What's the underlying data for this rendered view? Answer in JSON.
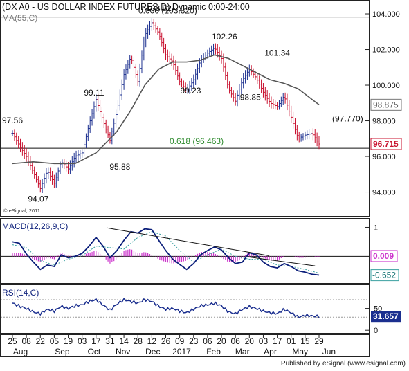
{
  "colors": {
    "price_bar": "#1b2f8f",
    "price_bar_down": "#c8102e",
    "ma_line": "#555555",
    "macd_line": "#0b1e7a",
    "signal_line": "#3aa0a0",
    "histogram": "#cc33cc",
    "rsi_line": "#1b2f8f",
    "fib_text": "#2e8b2e",
    "last_price_badge": "#c8102e",
    "rsi_badge": "#1b2f8f"
  },
  "chart_data": [
    {
      "type": "line",
      "panel": "price",
      "title": "(DX A0 - US DOLLAR INDEX FUTURES,D) Dynamic 0:00-24:00",
      "legend": "MA(55,C)",
      "last_value_label": "96.715",
      "ma_value_label": "98.875",
      "watermark": "© eSignal, 2011",
      "ylim": [
        92.7,
        104.7
      ],
      "yticks": [
        "104.000",
        "102.000",
        "100.000",
        "98.000",
        "96.000",
        "94.000"
      ],
      "ytick_values": [
        104,
        102,
        100,
        98,
        96,
        94
      ],
      "x_labels": [
        "25",
        "08",
        "22",
        "05",
        "19",
        "03",
        "17",
        "31",
        "14",
        "28",
        "12",
        "26",
        "09",
        "23",
        "06",
        "20",
        "06",
        "20",
        "03",
        "17",
        "01",
        "15",
        "29"
      ],
      "x_label_days": [
        0,
        14,
        28,
        42,
        56,
        70,
        84,
        98,
        112,
        126,
        140,
        154,
        168,
        182,
        196,
        210,
        224,
        238,
        252,
        266,
        280,
        294,
        308
      ],
      "month_labels": [
        "Aug",
        "Sep",
        "Oct",
        "Nov",
        "Dec",
        "2017",
        "Feb",
        "Mar",
        "Apr",
        "May",
        "Jun"
      ],
      "month_label_days": [
        8,
        50,
        82,
        111,
        141,
        170,
        202,
        231,
        259,
        289,
        318
      ],
      "series": [
        {
          "name": "Close",
          "x_day": [
            0,
            7,
            14,
            21,
            28,
            35,
            42,
            49,
            56,
            63,
            70,
            77,
            84,
            91,
            98,
            105,
            112,
            119,
            126,
            133,
            140,
            147,
            154,
            161,
            168,
            175,
            182,
            189,
            196,
            203,
            210,
            217,
            224,
            231,
            238,
            245,
            252,
            259,
            266,
            273,
            280,
            287,
            294,
            301,
            308
          ],
          "values": [
            97.3,
            96.6,
            96.0,
            95.1,
            94.2,
            95.2,
            94.5,
            95.7,
            95.3,
            96.0,
            96.2,
            97.8,
            99.2,
            98.0,
            96.9,
            98.6,
            100.6,
            101.6,
            100.2,
            102.8,
            103.5,
            102.9,
            101.7,
            101.3,
            100.2,
            99.7,
            100.3,
            101.4,
            101.8,
            102.1,
            101.5,
            99.8,
            99.1,
            100.3,
            100.9,
            100.4,
            99.6,
            99.0,
            98.8,
            99.4,
            98.2,
            97.0,
            97.2,
            97.3,
            96.7
          ]
        },
        {
          "name": "MA(55,C)",
          "x_day": [
            0,
            21,
            42,
            63,
            84,
            105,
            119,
            133,
            147,
            161,
            175,
            189,
            203,
            217,
            231,
            245,
            259,
            273,
            287,
            301,
            308
          ],
          "values": [
            95.6,
            95.7,
            95.6,
            95.6,
            96.2,
            97.4,
            98.6,
            100.0,
            100.9,
            101.3,
            101.3,
            101.4,
            101.7,
            101.5,
            101.1,
            100.7,
            100.3,
            100.1,
            99.8,
            99.2,
            98.9
          ]
        }
      ],
      "levels": [
        {
          "label": "0.000 (103.820)",
          "value": 103.82
        },
        {
          "label": "(97.770)",
          "value": 97.77
        },
        {
          "label": "0.618 (96.463)",
          "value": 96.463
        }
      ],
      "annotations": [
        {
          "text": "97.56",
          "x_day": 0,
          "y": 97.56
        },
        {
          "text": "94.07",
          "x_day": 26,
          "y": 94.07
        },
        {
          "text": "99.11",
          "x_day": 82,
          "y": 99.11
        },
        {
          "text": "95.88",
          "x_day": 108,
          "y": 95.88
        },
        {
          "text": "103.82",
          "x_day": 147,
          "y": 103.82
        },
        {
          "text": "99.23",
          "x_day": 179,
          "y": 99.23
        },
        {
          "text": "102.26",
          "x_day": 213,
          "y": 102.26
        },
        {
          "text": "98.85",
          "x_day": 239,
          "y": 98.85
        },
        {
          "text": "101.34",
          "x_day": 266,
          "y": 101.34
        }
      ]
    },
    {
      "type": "line",
      "panel": "macd",
      "legend": "MACD(12,26,9,C)",
      "ylim": [
        -0.9,
        1.25
      ],
      "yticks": [
        "1"
      ],
      "ytick_values": [
        1
      ],
      "zero_line": 0,
      "series_labels": [
        "0.009",
        "-0.652"
      ],
      "series": [
        {
          "name": "MACD",
          "x_day": [
            0,
            7,
            14,
            21,
            28,
            35,
            42,
            49,
            56,
            63,
            70,
            77,
            84,
            91,
            98,
            105,
            112,
            119,
            126,
            133,
            140,
            147,
            154,
            161,
            168,
            175,
            182,
            189,
            196,
            203,
            210,
            217,
            224,
            231,
            238,
            245,
            252,
            259,
            266,
            273,
            280,
            287,
            294,
            301,
            308
          ],
          "values": [
            0.5,
            0.45,
            0.08,
            -0.2,
            -0.45,
            -0.3,
            -0.35,
            0.05,
            -0.05,
            0.0,
            0.1,
            0.35,
            0.65,
            0.35,
            -0.05,
            0.2,
            0.55,
            0.85,
            0.8,
            0.95,
            0.92,
            0.55,
            0.2,
            -0.1,
            -0.28,
            -0.45,
            -0.25,
            0.05,
            0.2,
            0.32,
            0.22,
            -0.05,
            -0.25,
            -0.2,
            0.12,
            0.05,
            -0.2,
            -0.35,
            -0.4,
            -0.25,
            -0.35,
            -0.5,
            -0.55,
            -0.62,
            -0.65
          ]
        },
        {
          "name": "Signal",
          "x_day": [
            0,
            14,
            28,
            42,
            56,
            70,
            84,
            98,
            112,
            126,
            140,
            154,
            168,
            182,
            196,
            210,
            224,
            238,
            252,
            266,
            280,
            294,
            308
          ],
          "values": [
            0.4,
            0.3,
            -0.15,
            -0.3,
            -0.1,
            0.02,
            0.35,
            0.3,
            0.25,
            0.65,
            0.85,
            0.7,
            0.2,
            -0.2,
            0.05,
            0.25,
            0.0,
            -0.1,
            -0.1,
            -0.3,
            -0.35,
            -0.45,
            -0.58
          ]
        },
        {
          "name": "Histogram",
          "x_day": [
            0,
            7,
            14,
            21,
            28,
            35,
            42,
            49,
            56,
            63,
            70,
            77,
            84,
            91,
            98,
            105,
            112,
            119,
            126,
            133,
            140,
            147,
            154,
            161,
            168,
            175,
            182,
            189,
            196,
            203,
            210,
            217,
            224,
            231,
            238,
            245,
            252,
            259,
            266,
            273,
            280,
            287,
            294,
            301,
            308
          ],
          "values": [
            0.1,
            0.12,
            0.05,
            -0.1,
            -0.2,
            -0.05,
            -0.1,
            0.12,
            0.02,
            0.0,
            0.05,
            0.12,
            0.2,
            0.0,
            -0.25,
            -0.1,
            0.2,
            0.25,
            0.1,
            0.15,
            0.05,
            -0.1,
            -0.2,
            -0.25,
            -0.2,
            -0.15,
            0.0,
            0.15,
            0.15,
            0.1,
            -0.05,
            -0.2,
            -0.2,
            -0.05,
            0.15,
            0.08,
            -0.05,
            -0.15,
            -0.15,
            0.0,
            0.0,
            -0.05,
            -0.05,
            -0.02,
            -0.02
          ]
        }
      ],
      "trendline": {
        "x_day": [
          95,
          258
        ],
        "values": [
          0.98,
          0.02
        ]
      },
      "trendline2": {
        "x_day": [
          236,
          304
        ],
        "values": [
          -0.02,
          -0.33
        ]
      }
    },
    {
      "type": "line",
      "panel": "rsi",
      "legend": "RSI(14,C)",
      "ylim": [
        -6,
        100
      ],
      "yticks": [
        "50",
        "0"
      ],
      "ytick_values": [
        50,
        0
      ],
      "value_label": "31.657",
      "series": [
        {
          "name": "RSI",
          "x_day": [
            0,
            7,
            14,
            21,
            28,
            35,
            42,
            49,
            56,
            63,
            70,
            77,
            84,
            91,
            98,
            105,
            112,
            119,
            126,
            133,
            140,
            147,
            154,
            161,
            168,
            175,
            182,
            189,
            196,
            203,
            210,
            217,
            224,
            231,
            238,
            245,
            252,
            259,
            266,
            273,
            280,
            287,
            294,
            301,
            308
          ],
          "values": [
            62,
            55,
            50,
            42,
            38,
            48,
            44,
            55,
            50,
            56,
            58,
            66,
            70,
            58,
            46,
            60,
            70,
            66,
            62,
            70,
            66,
            55,
            48,
            50,
            44,
            40,
            48,
            56,
            58,
            62,
            56,
            42,
            38,
            48,
            54,
            50,
            44,
            40,
            38,
            48,
            40,
            30,
            34,
            33,
            31.7
          ]
        }
      ]
    }
  ],
  "footer": "Published by eSignal (www.esignal.com)"
}
